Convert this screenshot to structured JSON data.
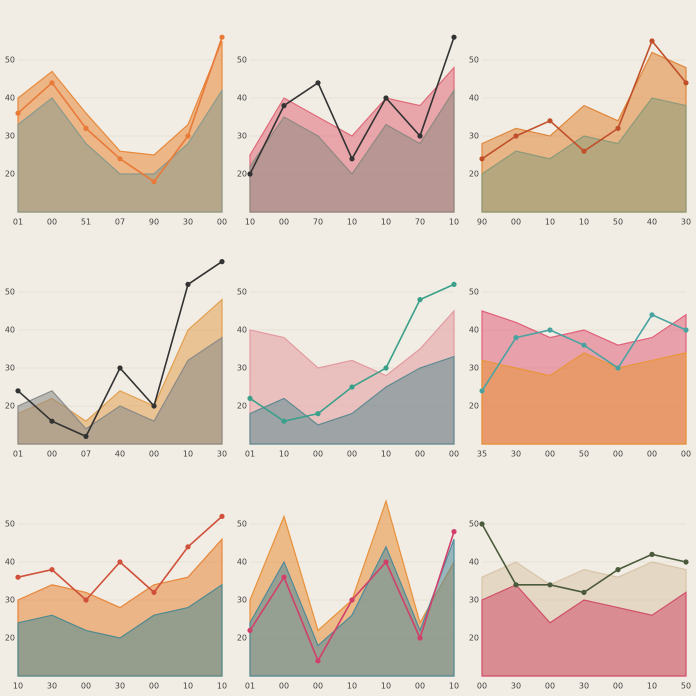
{
  "chart_data": [
    {
      "type": "area",
      "categories": [
        "01",
        "00",
        "51",
        "07",
        "90",
        "30",
        "00"
      ],
      "ylim": [
        10,
        60
      ],
      "yticks": [
        20,
        30,
        40,
        50
      ],
      "grid": true,
      "series": [
        {
          "color": "#e8893a",
          "fill": true,
          "values": [
            40,
            47,
            36,
            26,
            25,
            33,
            55
          ]
        },
        {
          "color": "#8a9a8c",
          "fill": true,
          "values": [
            33,
            40,
            28,
            20,
            20,
            28,
            42
          ]
        },
        {
          "color": "#e87a3a",
          "fill": false,
          "values": [
            36,
            44,
            32,
            24,
            18,
            30,
            56
          ]
        }
      ]
    },
    {
      "type": "area",
      "categories": [
        "10",
        "00",
        "70",
        "10",
        "10",
        "70",
        "10"
      ],
      "ylim": [
        10,
        60
      ],
      "yticks": [
        20,
        30,
        40,
        50
      ],
      "grid": true,
      "series": [
        {
          "color": "#e06a7a",
          "fill": true,
          "values": [
            25,
            40,
            35,
            30,
            40,
            38,
            48
          ]
        },
        {
          "color": "#8f8a80",
          "fill": true,
          "values": [
            22,
            35,
            30,
            20,
            33,
            28,
            42
          ]
        },
        {
          "color": "#333333",
          "fill": false,
          "values": [
            20,
            38,
            44,
            24,
            40,
            30,
            56
          ]
        }
      ]
    },
    {
      "type": "area",
      "categories": [
        "90",
        "00",
        "10",
        "10",
        "50",
        "40",
        "30"
      ],
      "ylim": [
        10,
        60
      ],
      "yticks": [
        20,
        30,
        40,
        50
      ],
      "grid": true,
      "series": [
        {
          "color": "#e0873a",
          "fill": true,
          "values": [
            28,
            32,
            30,
            38,
            34,
            52,
            48
          ]
        },
        {
          "color": "#8c9a78",
          "fill": true,
          "values": [
            20,
            26,
            24,
            30,
            28,
            40,
            38
          ]
        },
        {
          "color": "#c0502a",
          "fill": false,
          "values": [
            24,
            30,
            34,
            26,
            32,
            55,
            44
          ]
        }
      ]
    },
    {
      "type": "area",
      "categories": [
        "01",
        "00",
        "07",
        "40",
        "00",
        "10",
        "30"
      ],
      "ylim": [
        10,
        60
      ],
      "yticks": [
        20,
        30,
        40,
        50
      ],
      "grid": true,
      "series": [
        {
          "color": "#e2a050",
          "fill": true,
          "values": [
            18,
            22,
            16,
            24,
            20,
            40,
            48
          ]
        },
        {
          "color": "#8a8a88",
          "fill": true,
          "values": [
            20,
            24,
            14,
            20,
            16,
            32,
            38
          ]
        },
        {
          "color": "#333333",
          "fill": false,
          "values": [
            24,
            16,
            12,
            30,
            20,
            52,
            58
          ]
        }
      ]
    },
    {
      "type": "area",
      "categories": [
        "01",
        "10",
        "00",
        "00",
        "10",
        "00",
        "00"
      ],
      "ylim": [
        10,
        60
      ],
      "yticks": [
        20,
        30,
        40,
        50
      ],
      "grid": true,
      "series": [
        {
          "color": "#e39aa0",
          "fill": true,
          "values": [
            40,
            38,
            30,
            32,
            28,
            35,
            45
          ]
        },
        {
          "color": "#5f8a92",
          "fill": true,
          "values": [
            18,
            22,
            15,
            18,
            25,
            30,
            33
          ]
        },
        {
          "color": "#3aa08a",
          "fill": false,
          "values": [
            22,
            16,
            18,
            25,
            30,
            48,
            52
          ]
        }
      ]
    },
    {
      "type": "area",
      "categories": [
        "35",
        "30",
        "00",
        "50",
        "00",
        "00",
        "00"
      ],
      "ylim": [
        10,
        60
      ],
      "yticks": [
        20,
        30,
        40,
        50
      ],
      "grid": true,
      "series": [
        {
          "color": "#e0607a",
          "fill": true,
          "values": [
            45,
            42,
            38,
            40,
            36,
            38,
            44
          ]
        },
        {
          "color": "#e8963a",
          "fill": true,
          "values": [
            32,
            30,
            28,
            34,
            30,
            32,
            34
          ]
        },
        {
          "color": "#4aa3a0",
          "fill": false,
          "values": [
            24,
            38,
            40,
            36,
            30,
            44,
            40
          ]
        }
      ]
    },
    {
      "type": "area",
      "categories": [
        "10",
        "30",
        "00",
        "30",
        "00",
        "10",
        "10"
      ],
      "ylim": [
        10,
        60
      ],
      "yticks": [
        20,
        30,
        40,
        50
      ],
      "grid": true,
      "series": [
        {
          "color": "#e8863a",
          "fill": true,
          "values": [
            30,
            34,
            32,
            28,
            34,
            36,
            46
          ]
        },
        {
          "color": "#4f8a90",
          "fill": true,
          "values": [
            24,
            26,
            22,
            20,
            26,
            28,
            34
          ]
        },
        {
          "color": "#d0503a",
          "fill": false,
          "values": [
            36,
            38,
            30,
            40,
            32,
            44,
            52
          ]
        }
      ]
    },
    {
      "type": "area",
      "categories": [
        "01",
        "00",
        "00",
        "10",
        "10",
        "00",
        "10"
      ],
      "ylim": [
        10,
        60
      ],
      "yticks": [
        20,
        30,
        40,
        50
      ],
      "grid": true,
      "series": [
        {
          "color": "#e8903a",
          "fill": true,
          "values": [
            30,
            52,
            22,
            30,
            56,
            24,
            40
          ]
        },
        {
          "color": "#4f8a9a",
          "fill": true,
          "values": [
            24,
            40,
            18,
            26,
            44,
            22,
            46
          ]
        },
        {
          "color": "#d0406a",
          "fill": false,
          "values": [
            22,
            36,
            14,
            30,
            40,
            20,
            48
          ]
        }
      ]
    },
    {
      "type": "area",
      "categories": [
        "00",
        "30",
        "00",
        "30",
        "00",
        "10",
        "50"
      ],
      "ylim": [
        10,
        60
      ],
      "yticks": [
        20,
        30,
        40,
        50
      ],
      "grid": true,
      "series": [
        {
          "color": "#d8c4a8",
          "fill": true,
          "values": [
            36,
            40,
            34,
            38,
            36,
            40,
            38
          ]
        },
        {
          "color": "#d0506a",
          "fill": true,
          "values": [
            30,
            34,
            24,
            30,
            28,
            26,
            32
          ]
        },
        {
          "color": "#4a5a3a",
          "fill": false,
          "values": [
            50,
            34,
            34,
            32,
            38,
            42,
            40
          ]
        }
      ]
    }
  ]
}
